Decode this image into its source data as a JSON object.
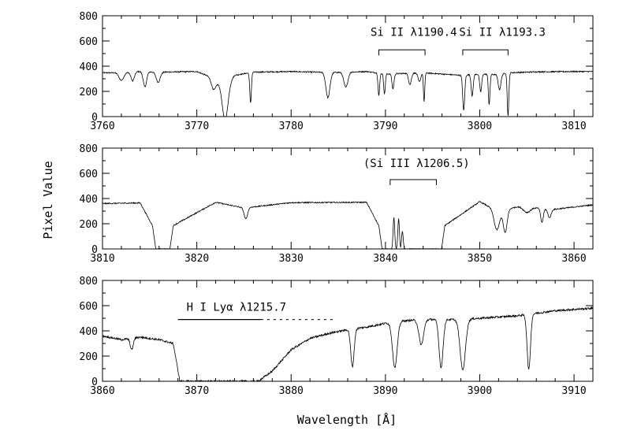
{
  "xlabel": "Wavelength [Å]",
  "ylabel": "Pixel Value",
  "chart_data": [
    {
      "type": "line",
      "title": "",
      "xlabel": "",
      "ylabel": "Pixel Value",
      "xlim": [
        3760,
        3812
      ],
      "ylim": [
        0,
        800
      ],
      "xticks": [
        3760,
        3770,
        3780,
        3790,
        3800,
        3810
      ],
      "yticks": [
        0,
        200,
        400,
        600,
        800
      ],
      "grid": false,
      "baseline": 355,
      "series": [
        {
          "x": [
            3762,
            3764,
            3766,
            3770,
            3772,
            3773,
            3774,
            3776,
            3780,
            3784,
            3786,
            3788,
            3790,
            3792,
            3794,
            3798,
            3800,
            3802,
            3803,
            3806,
            3810
          ],
          "y": [
            340,
            360,
            350,
            360,
            240,
            110,
            300,
            350,
            360,
            345,
            350,
            360,
            320,
            330,
            340,
            300,
            320,
            310,
            340,
            355,
            360
          ]
        }
      ],
      "features": [
        {
          "center": 3762.0,
          "depth": 60,
          "width": 0.35
        },
        {
          "center": 3763.2,
          "depth": 70,
          "width": 0.25
        },
        {
          "center": 3764.5,
          "depth": 120,
          "width": 0.25
        },
        {
          "center": 3765.9,
          "depth": 80,
          "width": 0.3
        },
        {
          "center": 3771.8,
          "depth": 90,
          "width": 0.35
        },
        {
          "center": 3773.0,
          "depth": 270,
          "width": 0.42
        },
        {
          "center": 3775.7,
          "depth": 240,
          "width": 0.12
        },
        {
          "center": 3783.9,
          "depth": 200,
          "width": 0.3
        },
        {
          "center": 3785.8,
          "depth": 120,
          "width": 0.3
        },
        {
          "center": 3789.3,
          "depth": 180,
          "width": 0.12
        },
        {
          "center": 3789.9,
          "depth": 160,
          "width": 0.12
        },
        {
          "center": 3790.8,
          "depth": 120,
          "width": 0.15
        },
        {
          "center": 3792.6,
          "depth": 90,
          "width": 0.2
        },
        {
          "center": 3793.6,
          "depth": 70,
          "width": 0.2
        },
        {
          "center": 3794.1,
          "depth": 230,
          "width": 0.1
        },
        {
          "center": 3798.3,
          "depth": 280,
          "width": 0.15
        },
        {
          "center": 3799.2,
          "depth": 170,
          "width": 0.15
        },
        {
          "center": 3800.1,
          "depth": 140,
          "width": 0.15
        },
        {
          "center": 3801.0,
          "depth": 240,
          "width": 0.12
        },
        {
          "center": 3802.1,
          "depth": 120,
          "width": 0.2
        },
        {
          "center": 3803.0,
          "depth": 340,
          "width": 0.12
        }
      ],
      "annotations": [
        {
          "text": "Si  II  λ1190.4",
          "text_x": 3793.0,
          "text_y": 640,
          "bar": [
            3789.3,
            3794.2
          ],
          "bar_y": 530
        },
        {
          "text": "Si  II  λ1193.3",
          "text_x": 3802.4,
          "text_y": 640,
          "bar": [
            3798.2,
            3803.0
          ],
          "bar_y": 530
        }
      ]
    },
    {
      "type": "line",
      "title": "",
      "xlabel": "",
      "ylabel": "Pixel Value",
      "xlim": [
        3810,
        3862
      ],
      "ylim": [
        0,
        800
      ],
      "xticks": [
        3810,
        3820,
        3830,
        3840,
        3850,
        3860
      ],
      "yticks": [
        0,
        200,
        400,
        600,
        800
      ],
      "grid": false,
      "baseline": 370,
      "troughs": [
        {
          "x1": 3815.3,
          "x2": 3817.5,
          "floor": 0
        },
        {
          "x1": 3839.3,
          "x2": 3846.3,
          "floor": 0
        }
      ],
      "spikes": [
        {
          "x": 3840.9,
          "y": 250,
          "width": 0.12
        },
        {
          "x": 3841.4,
          "y": 240,
          "width": 0.12
        },
        {
          "x": 3841.8,
          "y": 140,
          "width": 0.12
        }
      ],
      "series": [
        {
          "x": [
            3810,
            3814,
            3815.3,
            3817.5,
            3822,
            3825,
            3830,
            3838,
            3839.3,
            3846.3,
            3850,
            3852,
            3854,
            3858,
            3862
          ],
          "y": [
            350,
            360,
            0,
            0,
            370,
            280,
            365,
            370,
            0,
            0,
            380,
            220,
            300,
            260,
            330
          ]
        }
      ],
      "features": [
        {
          "center": 3825.2,
          "depth": 90,
          "width": 0.25
        },
        {
          "center": 3851.8,
          "depth": 150,
          "width": 0.4
        },
        {
          "center": 3852.7,
          "depth": 180,
          "width": 0.28
        },
        {
          "center": 3855.0,
          "depth": 40,
          "width": 0.5
        },
        {
          "center": 3856.6,
          "depth": 110,
          "width": 0.2
        },
        {
          "center": 3857.4,
          "depth": 70,
          "width": 0.25
        }
      ],
      "annotations": [
        {
          "text": "(Si  III  λ1206.5)",
          "text_x": 3843.3,
          "text_y": 650,
          "bar": [
            3840.5,
            3845.4
          ],
          "bar_y": 550
        }
      ]
    },
    {
      "type": "line",
      "title": "",
      "xlabel": "Wavelength [Å]",
      "ylabel": "Pixel Value",
      "xlim": [
        3860,
        3912
      ],
      "ylim": [
        0,
        800
      ],
      "xticks": [
        3860,
        3870,
        3880,
        3890,
        3900,
        3910
      ],
      "yticks": [
        0,
        200,
        400,
        600,
        800
      ],
      "grid": false,
      "series": [
        {
          "x": [
            3860,
            3862,
            3864,
            3866,
            3867.5,
            3868.2,
            3876.5,
            3878,
            3880,
            3882,
            3884,
            3886,
            3888,
            3890,
            3892,
            3894,
            3896,
            3898,
            3900,
            3902,
            3904,
            3906,
            3908,
            3910,
            3912
          ],
          "y": [
            360,
            330,
            350,
            330,
            300,
            0,
            0,
            80,
            250,
            340,
            380,
            410,
            430,
            460,
            480,
            490,
            490,
            490,
            500,
            510,
            520,
            540,
            560,
            570,
            580
          ]
        }
      ],
      "features": [
        {
          "center": 3863.1,
          "depth": 90,
          "width": 0.22
        },
        {
          "center": 3886.5,
          "depth": 300,
          "width": 0.25
        },
        {
          "center": 3891.0,
          "depth": 360,
          "width": 0.35
        },
        {
          "center": 3893.8,
          "depth": 200,
          "width": 0.35
        },
        {
          "center": 3895.9,
          "depth": 380,
          "width": 0.3
        },
        {
          "center": 3898.2,
          "depth": 400,
          "width": 0.4
        },
        {
          "center": 3905.2,
          "depth": 440,
          "width": 0.25
        }
      ],
      "annotations": [
        {
          "text": "H  I  Lyα  λ1215.7",
          "text_x": 3874.2,
          "text_y": 560,
          "bar": [
            3868.0,
            3876.8
          ],
          "bar_y": 490,
          "dash_to": 3884.6
        }
      ]
    }
  ]
}
